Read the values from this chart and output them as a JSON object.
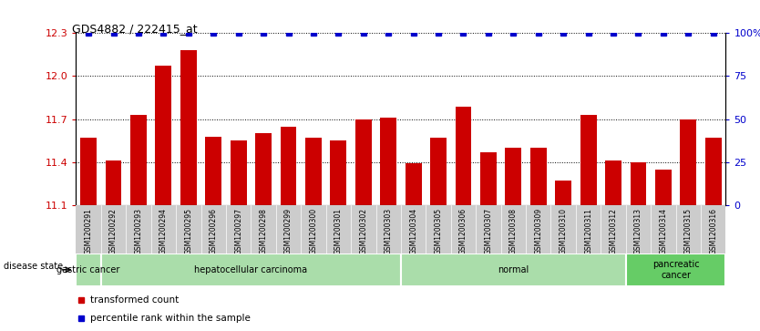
{
  "title": "GDS4882 / 222415_at",
  "samples": [
    "GSM1200291",
    "GSM1200292",
    "GSM1200293",
    "GSM1200294",
    "GSM1200295",
    "GSM1200296",
    "GSM1200297",
    "GSM1200298",
    "GSM1200299",
    "GSM1200300",
    "GSM1200301",
    "GSM1200302",
    "GSM1200303",
    "GSM1200304",
    "GSM1200305",
    "GSM1200306",
    "GSM1200307",
    "GSM1200308",
    "GSM1200309",
    "GSM1200310",
    "GSM1200311",
    "GSM1200312",
    "GSM1200313",
    "GSM1200314",
    "GSM1200315",
    "GSM1200316"
  ],
  "transformed_count": [
    11.57,
    11.41,
    11.73,
    12.07,
    12.18,
    11.58,
    11.55,
    11.6,
    11.65,
    11.57,
    11.55,
    11.7,
    11.71,
    11.39,
    11.57,
    11.79,
    11.47,
    11.5,
    11.5,
    11.27,
    11.73,
    11.41,
    11.4,
    11.35,
    11.7,
    11.57
  ],
  "percentile": [
    100,
    100,
    100,
    100,
    100,
    100,
    100,
    100,
    100,
    100,
    100,
    100,
    100,
    100,
    100,
    100,
    100,
    100,
    100,
    100,
    100,
    100,
    100,
    100,
    100,
    100
  ],
  "ylim_left": [
    11.1,
    12.3
  ],
  "ylim_right": [
    0,
    100
  ],
  "yticks_left": [
    11.1,
    11.4,
    11.7,
    12.0,
    12.3
  ],
  "yticks_right": [
    0,
    25,
    50,
    75,
    100
  ],
  "bar_color": "#cc0000",
  "percentile_color": "#0000cc",
  "groups": [
    {
      "label": "gastric cancer",
      "start": 0,
      "end": 0,
      "color": "#aaddaa"
    },
    {
      "label": "hepatocellular carcinoma",
      "start": 1,
      "end": 12,
      "color": "#aaddaa"
    },
    {
      "label": "normal",
      "start": 13,
      "end": 21,
      "color": "#aaddaa"
    },
    {
      "label": "pancreatic\ncancer",
      "start": 22,
      "end": 25,
      "color": "#66cc66"
    }
  ],
  "disease_state_label": "disease state",
  "legend_items": [
    {
      "label": "transformed count",
      "color": "#cc0000"
    },
    {
      "label": "percentile rank within the sample",
      "color": "#0000cc"
    }
  ],
  "tick_bg_color": "#cccccc"
}
